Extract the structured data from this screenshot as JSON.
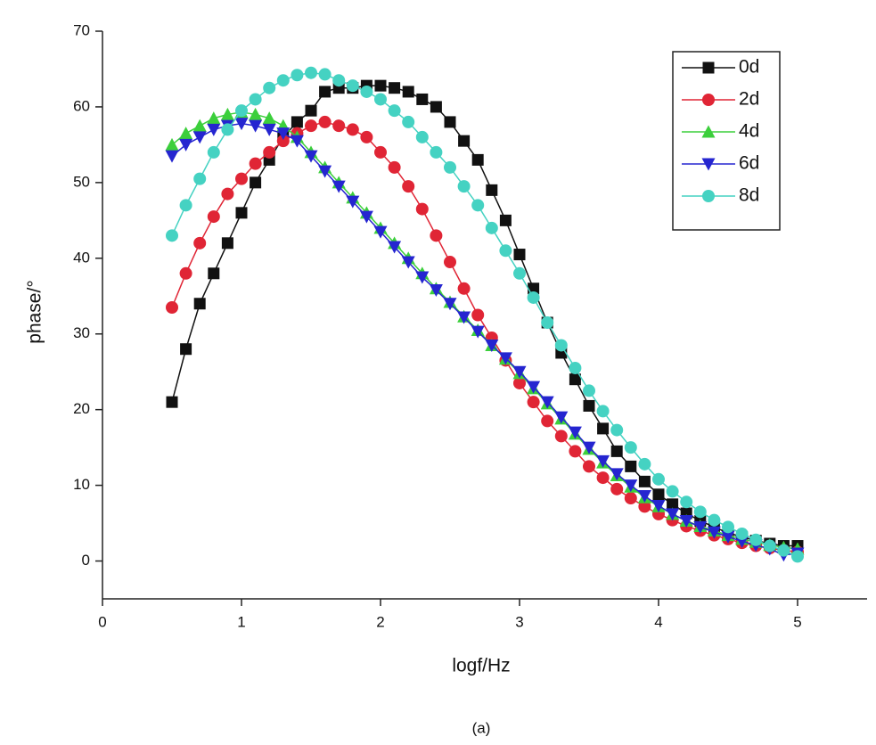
{
  "chart_data": {
    "type": "line",
    "xlabel": "logf/Hz",
    "ylabel": "phase/°",
    "caption": "(a)",
    "x": [
      0.5,
      0.6,
      0.7,
      0.8,
      0.9,
      1.0,
      1.1,
      1.2,
      1.3,
      1.4,
      1.5,
      1.6,
      1.7,
      1.8,
      1.9,
      2.0,
      2.1,
      2.2,
      2.3,
      2.4,
      2.5,
      2.6,
      2.7,
      2.8,
      2.9,
      3.0,
      3.1,
      3.2,
      3.3,
      3.4,
      3.5,
      3.6,
      3.7,
      3.8,
      3.9,
      4.0,
      4.1,
      4.2,
      4.3,
      4.4,
      4.5,
      4.6,
      4.7,
      4.8,
      4.9,
      5.0
    ],
    "series": [
      {
        "name": "0d",
        "color": "#111111",
        "marker": "square",
        "values": [
          21,
          28,
          34,
          38,
          42,
          46,
          50,
          53,
          56,
          58,
          59.5,
          62,
          62.5,
          62.5,
          62.8,
          62.8,
          62.5,
          62,
          61,
          60,
          58,
          55.5,
          53,
          49,
          45,
          40.5,
          36,
          31.5,
          27.5,
          24,
          20.5,
          17.5,
          14.5,
          12.5,
          10.5,
          8.8,
          7.5,
          6.3,
          5.3,
          4.5,
          3.7,
          3.2,
          2.7,
          2.3,
          2,
          2
        ]
      },
      {
        "name": "2d",
        "color": "#e02535",
        "marker": "circle",
        "values": [
          33.5,
          38,
          42,
          45.5,
          48.5,
          50.5,
          52.5,
          54,
          55.5,
          56.5,
          57.5,
          58,
          57.5,
          57,
          56,
          54,
          52,
          49.5,
          46.5,
          43,
          39.5,
          36,
          32.5,
          29.5,
          26.5,
          23.5,
          21,
          18.5,
          16.5,
          14.5,
          12.5,
          11,
          9.5,
          8.3,
          7.2,
          6.2,
          5.4,
          4.6,
          4,
          3.4,
          2.9,
          2.4,
          2,
          1.7,
          1.4,
          1.2
        ]
      },
      {
        "name": "4d",
        "color": "#3ccf3c",
        "marker": "triangle-up",
        "values": [
          55,
          56.5,
          57.5,
          58.5,
          59,
          59.3,
          59,
          58.5,
          57.5,
          56,
          54,
          52,
          50,
          48,
          46,
          44,
          42,
          40,
          38,
          36,
          34.2,
          32.3,
          30.5,
          28.5,
          26.7,
          24.8,
          22.8,
          20.8,
          18.8,
          16.8,
          14.8,
          13,
          11.3,
          9.8,
          8.4,
          7.2,
          6.2,
          5.3,
          4.6,
          4,
          3.4,
          2.9,
          2.5,
          2.1,
          1.8,
          1.6
        ]
      },
      {
        "name": "6d",
        "color": "#2525d0",
        "marker": "triangle-down",
        "values": [
          53.5,
          55,
          56,
          57,
          57.5,
          57.8,
          57.5,
          57,
          56.5,
          55.5,
          53.5,
          51.5,
          49.5,
          47.5,
          45.5,
          43.5,
          41.5,
          39.5,
          37.5,
          35.8,
          34,
          32.2,
          30.3,
          28.5,
          26.8,
          25,
          23,
          21,
          19,
          17,
          15,
          13.2,
          11.5,
          10,
          8.6,
          7.3,
          6.2,
          5.3,
          4.5,
          3.8,
          3.2,
          2.6,
          2.1,
          1.6,
          0.8,
          1
        ]
      },
      {
        "name": "8d",
        "color": "#45d2c2",
        "marker": "circle",
        "values": [
          43,
          47,
          50.5,
          54,
          57,
          59.5,
          61,
          62.5,
          63.5,
          64.2,
          64.5,
          64.3,
          63.5,
          62.8,
          62,
          61,
          59.5,
          58,
          56,
          54,
          52,
          49.5,
          47,
          44,
          41,
          38,
          34.8,
          31.5,
          28.5,
          25.5,
          22.5,
          19.8,
          17.3,
          15,
          12.8,
          10.8,
          9.2,
          7.8,
          6.5,
          5.4,
          4.5,
          3.6,
          2.8,
          2,
          1.4,
          0.6
        ]
      }
    ],
    "xlim": [
      0,
      5.5
    ],
    "xticks": [
      0,
      1,
      2,
      3,
      4,
      5
    ],
    "ylim": [
      -5,
      70
    ],
    "yticks": [
      0,
      10,
      20,
      30,
      40,
      50,
      60,
      70
    ],
    "legend": "upper right",
    "grid": false
  }
}
